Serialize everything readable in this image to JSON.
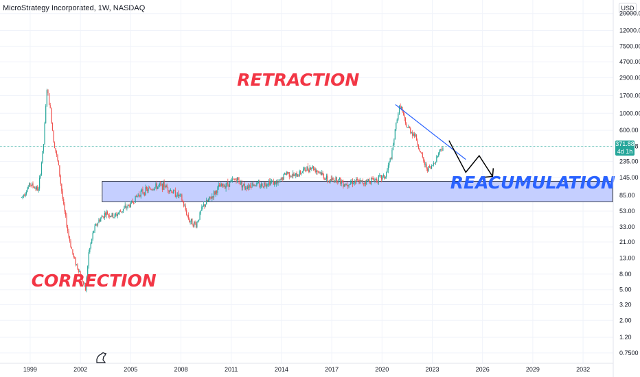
{
  "header": {
    "title": "MicroStrategy Incorporated, 1W, NASDAQ",
    "currency": "USD"
  },
  "price_label": {
    "price": "371.88",
    "countdown": "4d 1h"
  },
  "colors": {
    "up": "#26a69a",
    "down": "#ef5350",
    "zone_fill": "#c5cfff",
    "zone_stroke": "#131722",
    "trendline": "#2962ff",
    "projection": "#000000",
    "annotation_red": "#f23645",
    "annotation_blue": "#2962ff",
    "price_line": "#26a69a"
  },
  "chart_data": {
    "type": "candlestick",
    "y_scale": "log",
    "ylim": [
      0.55,
      30000
    ],
    "y_ticks": [
      "20000.00",
      "12000.00",
      "7500.00",
      "4700.00",
      "2900.00",
      "1700.00",
      "1000.00",
      "600.00",
      "371.88",
      "235.00",
      "145.00",
      "85.00",
      "53.00",
      "33.00",
      "21.00",
      "13.00",
      "8.00",
      "5.00",
      "3.20",
      "2.00",
      "1.20",
      "0.7500"
    ],
    "x_ticks": [
      "1999",
      "2002",
      "2005",
      "2008",
      "2011",
      "2014",
      "2017",
      "2020",
      "2023",
      "2026",
      "2029",
      "2032"
    ],
    "xlim": [
      1997.2,
      2033.8
    ],
    "series": [
      {
        "x": [
          1998.5,
          1999.0,
          1999.5,
          1999.8,
          2000.0,
          2000.2,
          2000.4,
          2000.7,
          2001.0,
          2001.3,
          2001.6,
          2002.0,
          2002.3,
          2002.5,
          2002.8,
          2003.1,
          2003.5,
          2004.0,
          2004.5,
          2005.0,
          2005.5,
          2006.0,
          2006.5,
          2007.0,
          2007.5,
          2008.0,
          2008.5,
          2008.9,
          2009.3,
          2009.8,
          2010.3,
          2010.8,
          2011.3,
          2011.8,
          2012.3,
          2012.8,
          2013.3,
          2013.8,
          2014.3,
          2014.8,
          2015.3,
          2015.8,
          2016.3,
          2016.8,
          2017.3,
          2017.8,
          2018.3,
          2018.8,
          2019.3,
          2019.8,
          2020.2,
          2020.6,
          2020.9,
          2021.1,
          2021.4,
          2021.7,
          2022.0,
          2022.3,
          2022.6,
          2022.9,
          2023.2,
          2023.5,
          2023.7
        ],
        "y": [
          80,
          120,
          100,
          400,
          2100,
          1100,
          450,
          200,
          60,
          25,
          13,
          8,
          5,
          15,
          30,
          40,
          50,
          45,
          55,
          65,
          90,
          100,
          110,
          115,
          95,
          80,
          40,
          35,
          60,
          80,
          110,
          120,
          140,
          110,
          120,
          115,
          130,
          120,
          170,
          150,
          180,
          200,
          170,
          130,
          140,
          120,
          130,
          125,
          135,
          140,
          150,
          300,
          900,
          1300,
          700,
          600,
          500,
          300,
          200,
          190,
          250,
          350,
          372
        ],
        "name": ""
      }
    ],
    "zone": {
      "x_start": 2003.3,
      "x_end": 2038.0,
      "y_low": 70,
      "y_high": 130,
      "label": "REACUMULATION"
    },
    "trendline": {
      "x1": 2020.8,
      "y1": 1300,
      "x2": 2025.0,
      "y2": 250
    },
    "projection": [
      [
        2024.0,
        440
      ],
      [
        2025.0,
        170
      ],
      [
        2025.8,
        280
      ],
      [
        2026.6,
        150
      ]
    ],
    "current_price": 371.88,
    "annotations": [
      {
        "text": "RETRACTION",
        "x": 2015.0,
        "y": 2300
      },
      {
        "text": "REACUMULATION",
        "x": 2029.0,
        "y": 105
      },
      {
        "text": "CORRECTION",
        "x": 2002.8,
        "y": 5.5
      }
    ]
  }
}
